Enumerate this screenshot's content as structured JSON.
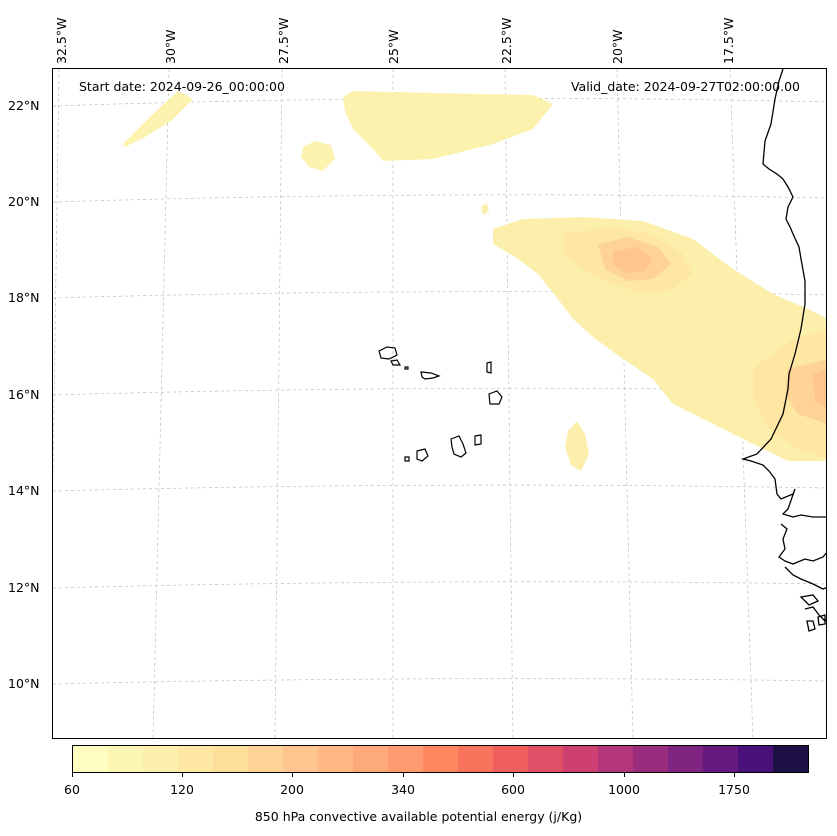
{
  "map": {
    "start_date": "Start date: 2024-09-26_00:00:00",
    "valid_date": "Valid_date: 2024-09-27T02:00:00.00",
    "lon_labels": [
      "32.5°W",
      "30°W",
      "27.5°W",
      "25°W",
      "22.5°W",
      "20°W",
      "17.5°W"
    ],
    "lat_labels": [
      "22°N",
      "20°N",
      "18°N",
      "16°N",
      "14°N",
      "12°N",
      "10°N"
    ],
    "gridlines": true,
    "coastline_color": "#000000"
  },
  "colorbar": {
    "label": "850 hPa convective available potential energy (j/Kg)",
    "tick_labels": [
      "60",
      "120",
      "200",
      "340",
      "600",
      "1000",
      "1750"
    ],
    "colors": [
      "#fcfdbf",
      "#fcf6b5",
      "#fcefac",
      "#fde7a3",
      "#fddf9b",
      "#fed395",
      "#fec68e",
      "#feb883",
      "#fea97a",
      "#fe9a6f",
      "#fc8761",
      "#f7735c",
      "#ee5f5e",
      "#e04f66",
      "#cd4071",
      "#b3367a",
      "#9a2c7e",
      "#7f2480",
      "#651a80",
      "#4a1079",
      "#1c1044"
    ]
  }
}
